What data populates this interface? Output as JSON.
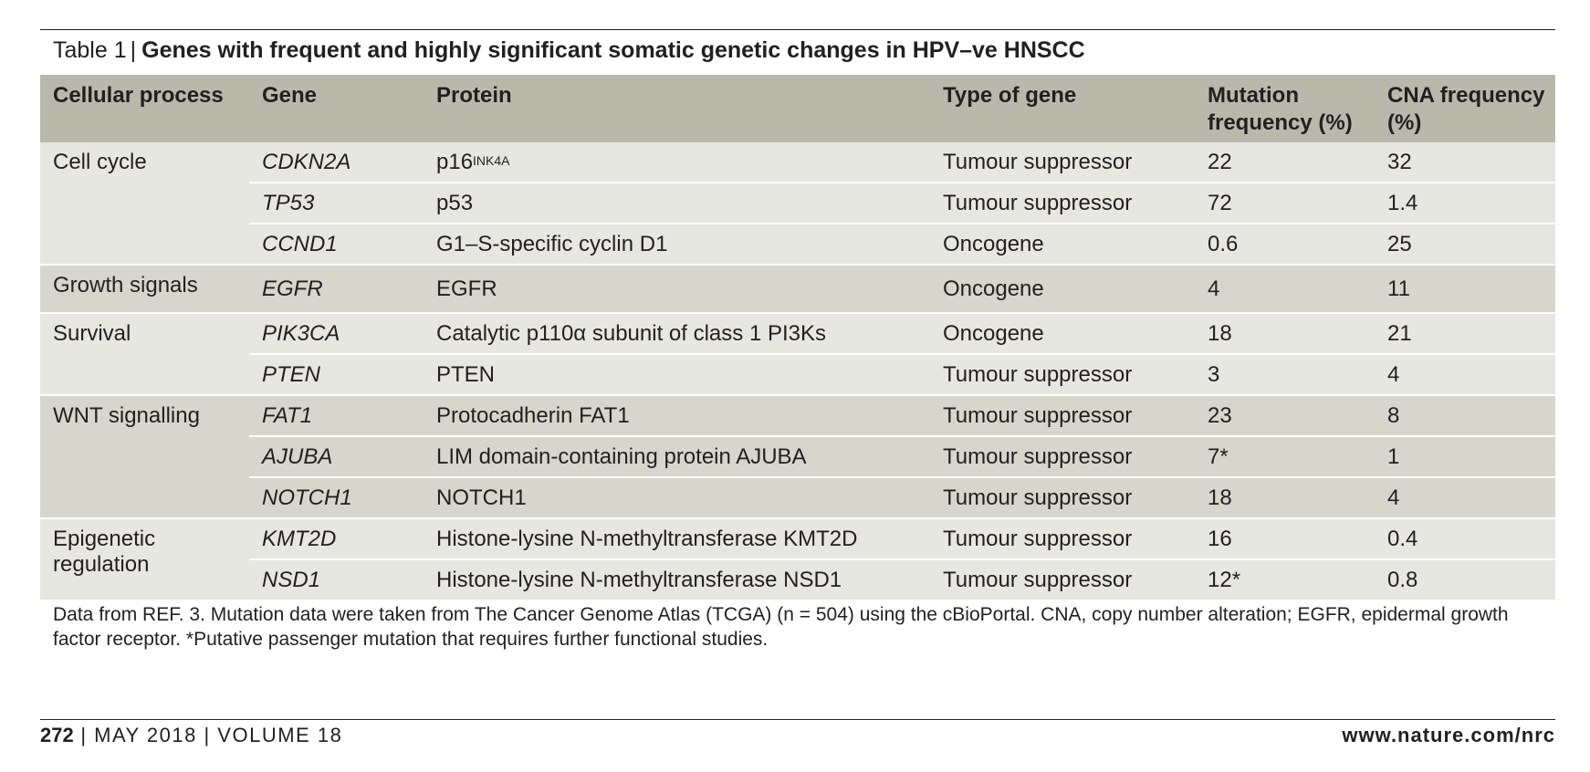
{
  "caption": {
    "label": "Table 1",
    "separator": "|",
    "title": "Genes with frequent and highly significant somatic genetic changes in HPV–ve HNSCC"
  },
  "table": {
    "headers": [
      "Cellular process",
      "Gene",
      "Protein",
      "Type of gene",
      "Mutation frequency (%)",
      "CNA frequency (%)"
    ],
    "groups": [
      {
        "process": "Cell cycle",
        "rows": [
          {
            "gene": "CDKN2A",
            "protein": "p16",
            "protein_sup": "INK4A",
            "type": "Tumour suppressor",
            "mutation": "22",
            "cna": "32"
          },
          {
            "gene": "TP53",
            "protein": "p53",
            "type": "Tumour suppressor",
            "mutation": "72",
            "cna": "1.4"
          },
          {
            "gene": "CCND1",
            "protein": "G1–S-specific cyclin D1",
            "type": "Oncogene",
            "mutation": "0.6",
            "cna": "25"
          }
        ]
      },
      {
        "process": "Growth signals",
        "rows": [
          {
            "gene": "EGFR",
            "protein": "EGFR",
            "type": "Oncogene",
            "mutation": "4",
            "cna": "11"
          }
        ]
      },
      {
        "process": "Survival",
        "rows": [
          {
            "gene": "PIK3CA",
            "protein": "Catalytic p110α subunit of class 1 PI3Ks",
            "type": "Oncogene",
            "mutation": "18",
            "cna": "21"
          },
          {
            "gene": "PTEN",
            "protein": "PTEN",
            "type": "Tumour suppressor",
            "mutation": "3",
            "cna": "4"
          }
        ]
      },
      {
        "process": "WNT signalling",
        "rows": [
          {
            "gene": "FAT1",
            "protein": "Protocadherin FAT1",
            "type": "Tumour suppressor",
            "mutation": "23",
            "cna": "8"
          },
          {
            "gene": "AJUBA",
            "protein": "LIM domain-containing protein AJUBA",
            "type": "Tumour suppressor",
            "mutation": "7*",
            "cna": "1"
          },
          {
            "gene": "NOTCH1",
            "protein": "NOTCH1",
            "type": "Tumour suppressor",
            "mutation": "18",
            "cna": "4"
          }
        ]
      },
      {
        "process": "Epigenetic regulation",
        "rows": [
          {
            "gene": "KMT2D",
            "protein": "Histone-lysine N-methyltransferase KMT2D",
            "type": "Tumour suppressor",
            "mutation": "16",
            "cna": "0.4"
          },
          {
            "gene": "NSD1",
            "protein": "Histone-lysine N-methyltransferase NSD1",
            "type": "Tumour suppressor",
            "mutation": "12*",
            "cna": "0.8"
          }
        ]
      }
    ]
  },
  "note": "Data from REF. 3. Mutation data were taken from The Cancer Genome Atlas (TCGA) (n = 504) using the cBioPortal. CNA, copy number alteration; EGFR, epidermal growth factor receptor. *Putative passenger mutation that requires further functional studies.",
  "footer": {
    "page": "272",
    "issue": "| MAY 2018 | VOLUME 18",
    "url": "www.nature.com/nrc"
  }
}
